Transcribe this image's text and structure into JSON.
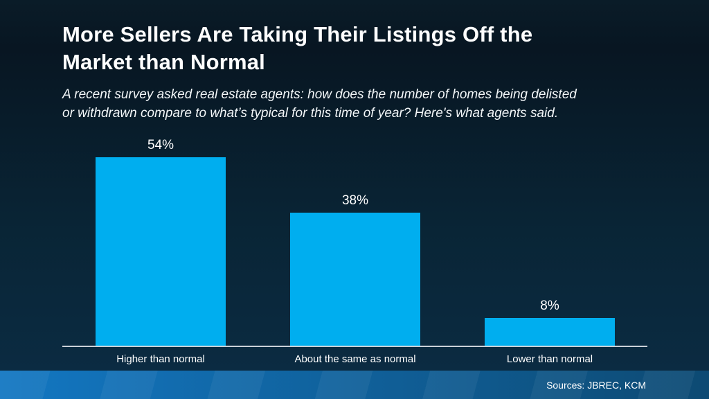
{
  "header": {
    "title_lines": [
      "More Sellers Are Taking Their Listings Off the",
      "Market than Normal"
    ],
    "subtitle_lines": [
      "A recent survey asked real estate agents: how does the number of homes being delisted",
      "or withdrawn compare to what’s typical for this time of year? Here's what agents said."
    ]
  },
  "footer": {
    "sources_label": "Sources: JBREC, KCM"
  },
  "colors": {
    "background_top": "#0A1C28",
    "background_bottom": "#0B2B42",
    "bar_fill": "#00AEEF",
    "axis_line": "#CBD1D8",
    "footer_gradient_left": "#1377C2",
    "footer_gradient_right": "#0D4A73",
    "text": "#FFFFFF"
  },
  "chart_data": {
    "type": "bar",
    "title": "More Sellers Are Taking Their Listings Off the Market than Normal",
    "subtitle": "A recent survey asked real estate agents: how does the number of homes being delisted or withdrawn compare to what’s typical for this time of year? Here's what agents said.",
    "categories": [
      "Higher than normal",
      "About the same as normal",
      "Lower than normal"
    ],
    "values": [
      54,
      38,
      8
    ],
    "value_labels": [
      "54%",
      "38%",
      "8%"
    ],
    "xlabel": "",
    "ylabel": "",
    "ylim": [
      0,
      60
    ],
    "grid": false,
    "legend": false,
    "bar_color": "#00AEEF"
  }
}
